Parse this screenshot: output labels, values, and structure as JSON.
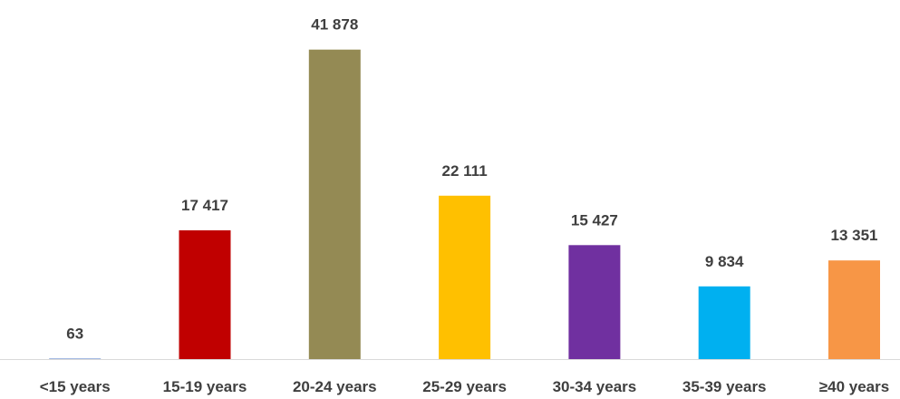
{
  "chart_data": {
    "type": "bar",
    "title": "",
    "xlabel": "",
    "ylabel": "",
    "categories": [
      "<15 years",
      "15-19 years",
      "20-24 years",
      "25-29 years",
      "30-34 years",
      "35-39 years",
      "≥40 years"
    ],
    "values": [
      63,
      17417,
      41878,
      22111,
      15427,
      9834,
      13351
    ],
    "value_labels": [
      "63",
      "17 417",
      "41 878",
      "22 111",
      "15 427",
      "9 834",
      "13 351"
    ],
    "colors": [
      "#4472c4",
      "#c00000",
      "#948a54",
      "#ffc000",
      "#7030a0",
      "#00b0f0",
      "#f79646"
    ],
    "axis_color": "#d9d9d9",
    "label_color": "#3f3f3f",
    "ylim": [
      0,
      46500
    ],
    "grid": false,
    "legend": "none"
  }
}
